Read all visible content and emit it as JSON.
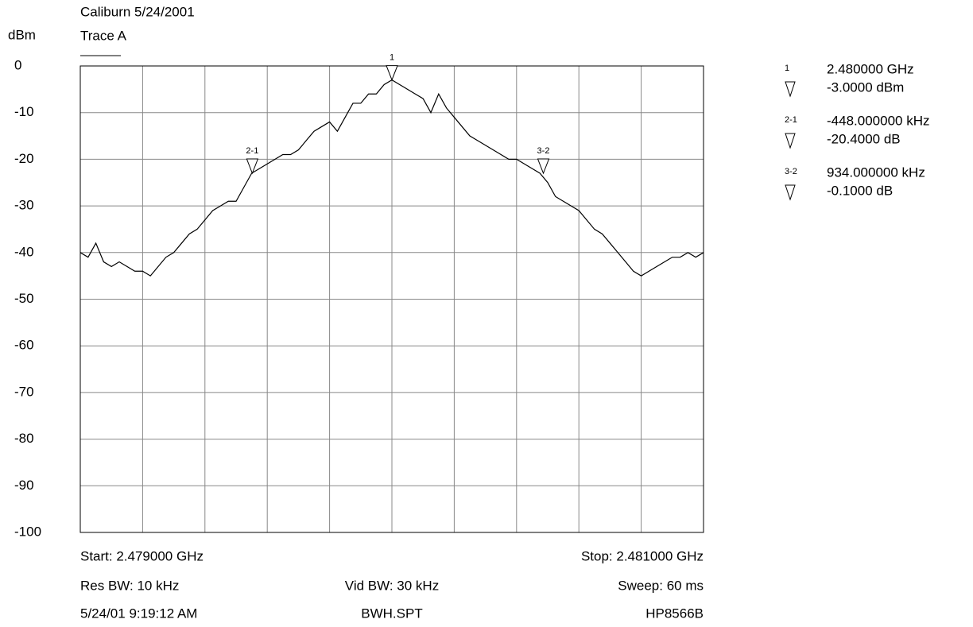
{
  "chart_data": {
    "type": "line",
    "title": "Caliburn 5/24/2001",
    "y_label": "dBm",
    "xlim": [
      2.479,
      2.481
    ],
    "ylim": [
      -100,
      0
    ],
    "yticks": [
      0,
      -10,
      -20,
      -30,
      -40,
      -50,
      -60,
      -70,
      -80,
      -90,
      -100
    ],
    "grid": true,
    "series": [
      {
        "name": "Trace A",
        "color": "#000000",
        "x": [
          2.479,
          2.479025,
          2.47905,
          2.479075,
          2.4791,
          2.479125,
          2.47915,
          2.479175,
          2.4792,
          2.479225,
          2.47925,
          2.479275,
          2.4793,
          2.479325,
          2.47935,
          2.479375,
          2.4794,
          2.479425,
          2.47945,
          2.479475,
          2.4795,
          2.479525,
          2.47955,
          2.479575,
          2.4796,
          2.479625,
          2.47965,
          2.479675,
          2.4797,
          2.479725,
          2.47975,
          2.479775,
          2.4798,
          2.479825,
          2.47985,
          2.479875,
          2.4799,
          2.479925,
          2.47995,
          2.479975,
          2.48,
          2.480025,
          2.48005,
          2.480075,
          2.4801,
          2.480125,
          2.48015,
          2.480175,
          2.4802,
          2.480225,
          2.48025,
          2.480275,
          2.4803,
          2.480325,
          2.48035,
          2.480375,
          2.4804,
          2.480425,
          2.48045,
          2.480475,
          2.4805,
          2.480525,
          2.48055,
          2.480575,
          2.4806,
          2.480625,
          2.48065,
          2.480675,
          2.4807,
          2.480725,
          2.48075,
          2.480775,
          2.4808,
          2.480825,
          2.48085,
          2.480875,
          2.4809,
          2.480925,
          2.48095,
          2.480975,
          2.481
        ],
        "values": [
          -40,
          -41,
          -38,
          -42,
          -43,
          -42,
          -43,
          -44,
          -44,
          -45,
          -43,
          -41,
          -40,
          -38,
          -36,
          -35,
          -33,
          -31,
          -30,
          -29,
          -29,
          -26,
          -23,
          -22,
          -21,
          -20,
          -19,
          -19,
          -18,
          -16,
          -14,
          -13,
          -12,
          -14,
          -11,
          -8,
          -8,
          -6,
          -6,
          -4,
          -3,
          -4,
          -5,
          -6,
          -7,
          -10,
          -6,
          -9,
          -11,
          -13,
          -15,
          -16,
          -17,
          -18,
          -19,
          -20,
          -20,
          -21,
          -22,
          -23,
          -25,
          -28,
          -29,
          -30,
          -31,
          -33,
          -35,
          -36,
          -38,
          -40,
          -42,
          -44,
          -45,
          -44,
          -43,
          -42,
          -41,
          -41,
          -40,
          -41,
          -40
        ]
      }
    ],
    "markers": [
      {
        "label": "1",
        "x": 2.48,
        "value": -3
      },
      {
        "label": "2-1",
        "x": 2.479552,
        "value": -23
      },
      {
        "label": "3-2",
        "x": 2.480486,
        "value": -23
      }
    ],
    "readouts": [
      {
        "index": "1",
        "line1": "2.480000 GHz",
        "line2": "-3.0000 dBm"
      },
      {
        "index": "2-1",
        "line1": "-448.000000 kHz",
        "line2": "-20.4000 dB"
      },
      {
        "index": "3-2",
        "line1": "934.000000 kHz",
        "line2": "-0.1000 dB"
      }
    ],
    "footer": {
      "start": "Start: 2.479000 GHz",
      "stop": "Stop: 2.481000 GHz",
      "res_bw": "Res BW: 10 kHz",
      "vid_bw": "Vid BW: 30 kHz",
      "sweep": "Sweep: 60 ms",
      "timestamp": "5/24/01 9:19:12 AM",
      "file": "BWH.SPT",
      "instrument": "HP8566B"
    }
  }
}
